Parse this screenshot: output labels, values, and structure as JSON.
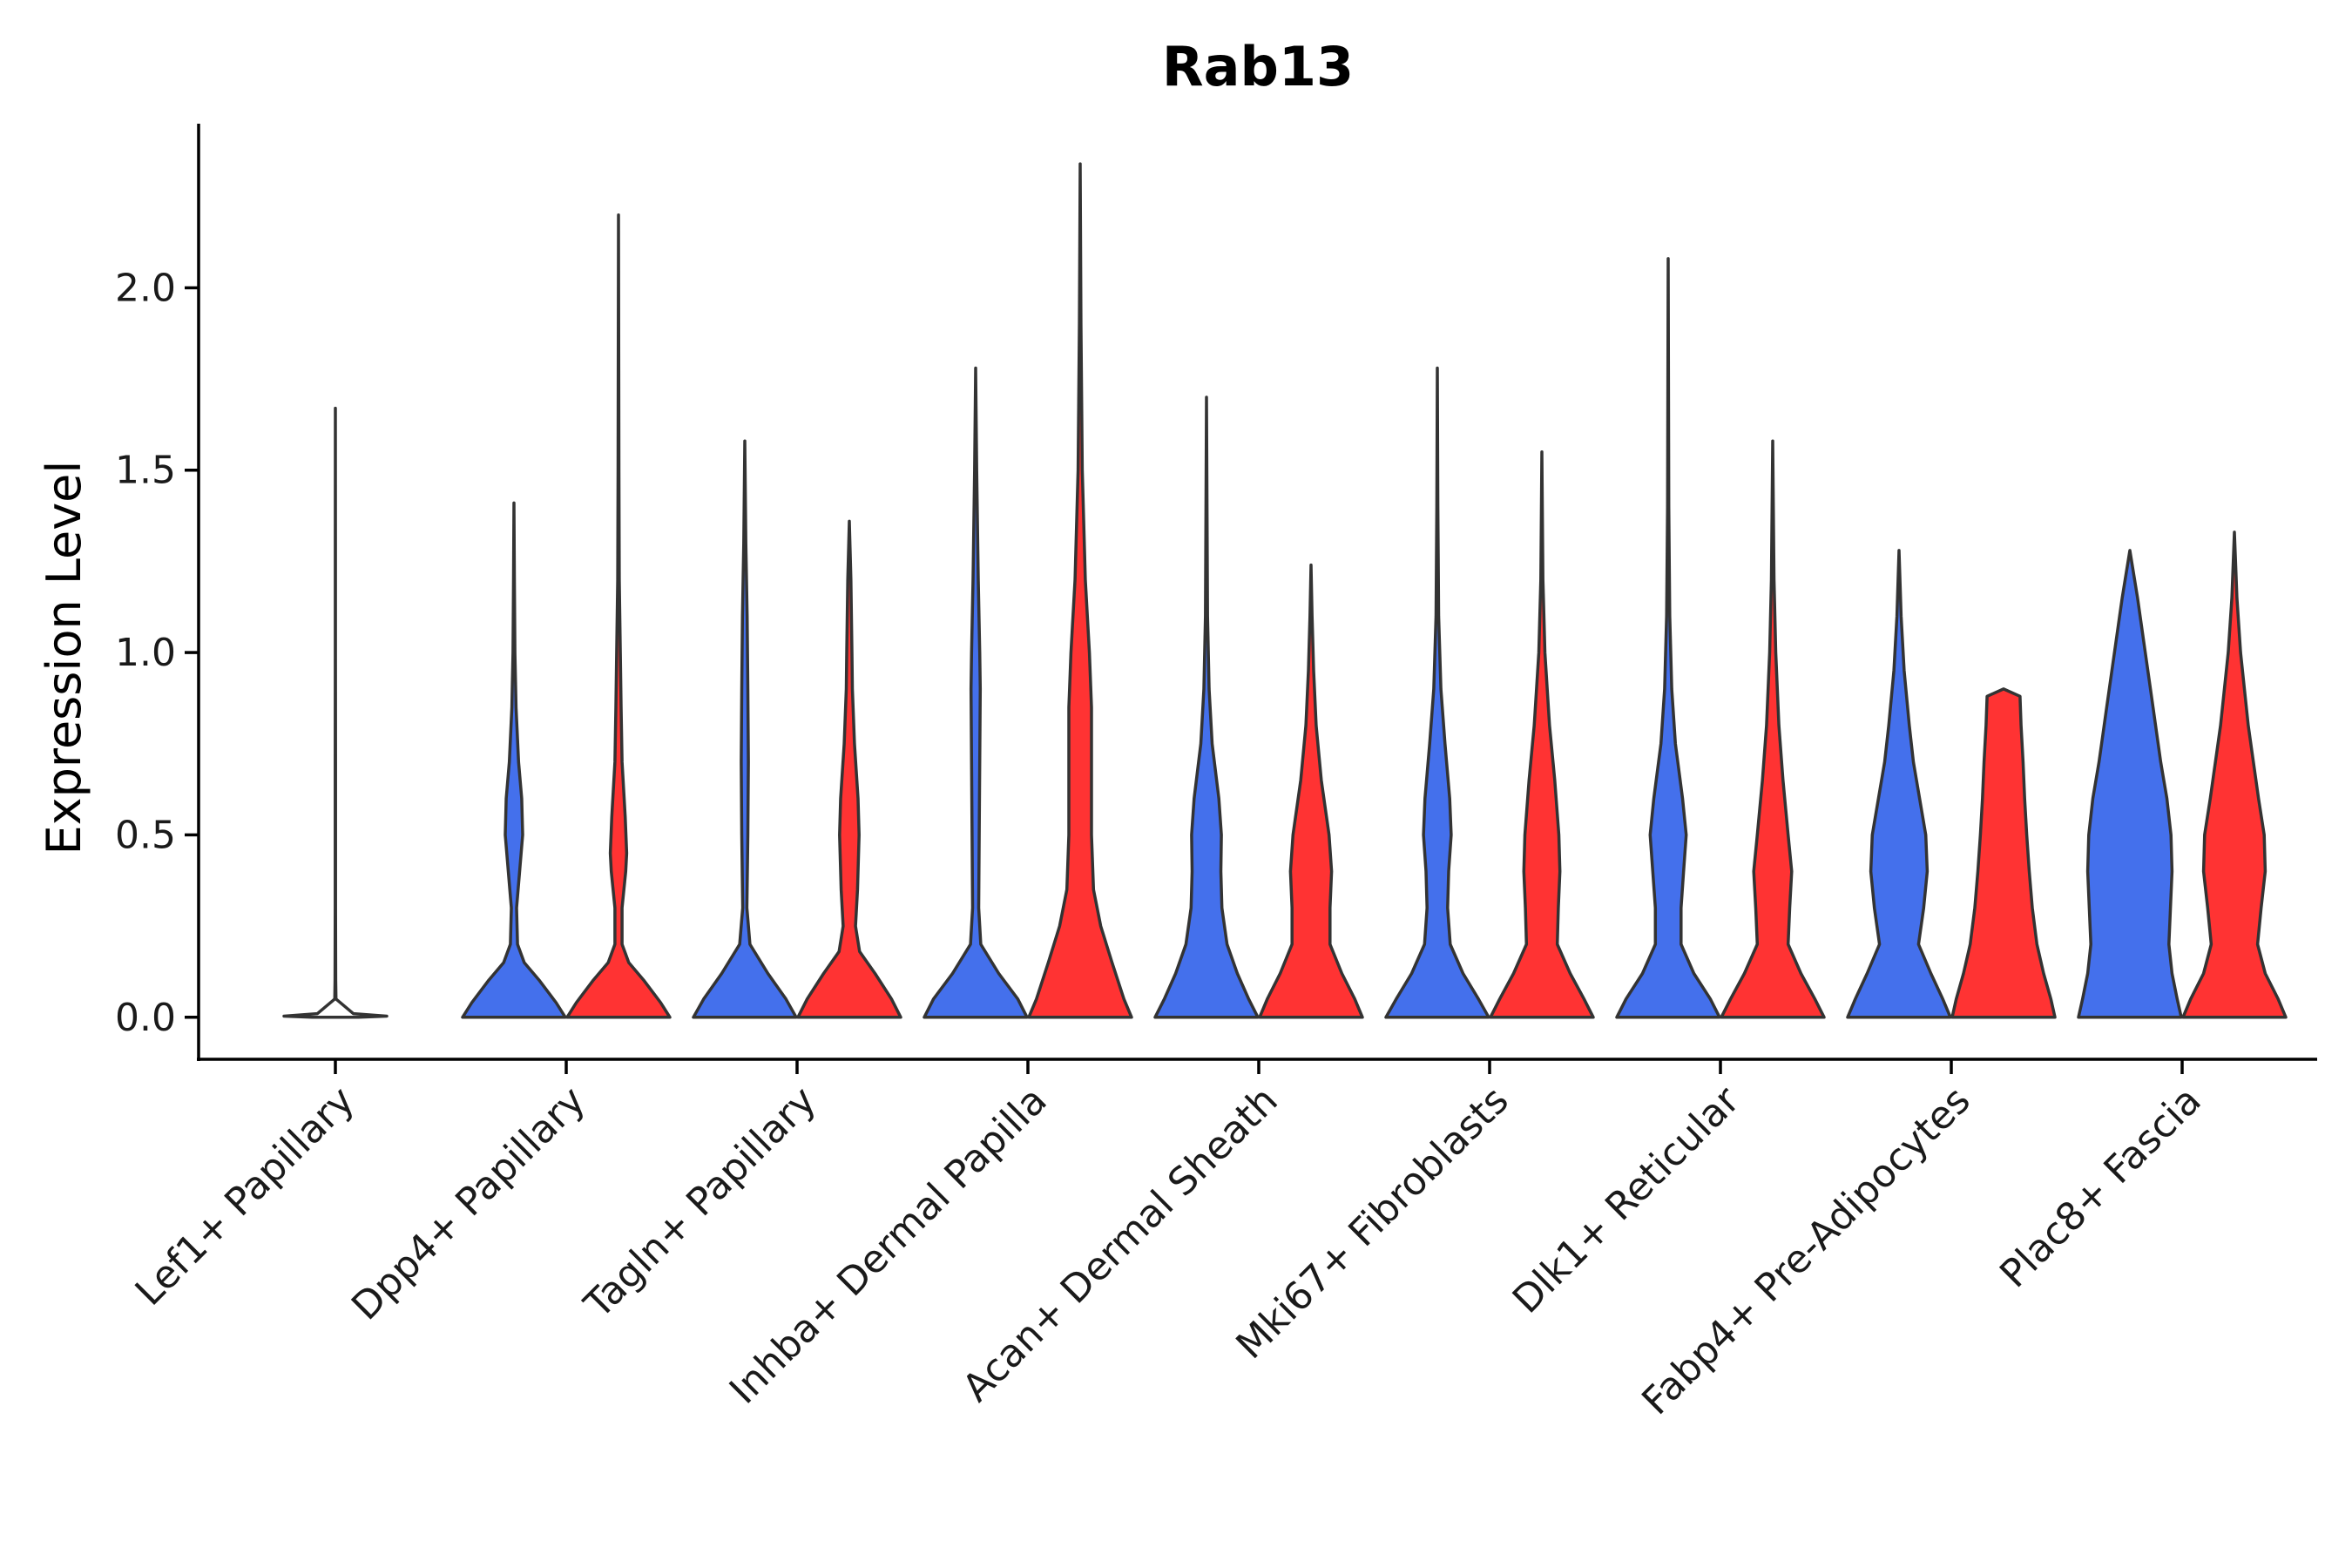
{
  "chart_data": {
    "type": "violin",
    "title": "Rab13",
    "ylabel": "Expression Level",
    "xlabel": "",
    "ylim": [
      -0.12,
      2.45
    ],
    "yticks": [
      0.0,
      0.5,
      1.0,
      1.5,
      2.0
    ],
    "ytick_labels": [
      "0.0",
      "0.5",
      "1.0",
      "1.5",
      "2.0"
    ],
    "grid": false,
    "legend": "none",
    "categories": [
      "Lef1+ Papillary",
      "Dpp4+ Papillary",
      "Tagln+ Papillary",
      "Inhba+ Dermal Papilla",
      "Acan+ Dermal Sheath",
      "Mki67+ Fibroblasts",
      "Dlk1+ Reticular",
      "Fabp4+ Pre-Adipocytes",
      "Plac8+ Fascia"
    ],
    "group_colors": [
      "#4470EC",
      "#FF3333"
    ],
    "groups": [
      [
        {
          "max": 1.67,
          "color": "#444444",
          "profile": [
            [
              0,
              0.45
            ],
            [
              0.003,
              1
            ],
            [
              0.01,
              0.35
            ],
            [
              0.05,
              0.012
            ],
            [
              0.1,
              0.006
            ],
            [
              0.3,
              0.004
            ],
            [
              0.5,
              0.003
            ],
            [
              0.7,
              0.003
            ],
            [
              1.0,
              0.002
            ],
            [
              1.3,
              0.002
            ],
            [
              1.67,
              0
            ]
          ]
        }
      ],
      [
        {
          "max": 1.41,
          "color": "#4470EC",
          "profile": [
            [
              0,
              1
            ],
            [
              0.04,
              0.82
            ],
            [
              0.1,
              0.5
            ],
            [
              0.15,
              0.2
            ],
            [
              0.2,
              0.07
            ],
            [
              0.3,
              0.05
            ],
            [
              0.4,
              0.11
            ],
            [
              0.5,
              0.17
            ],
            [
              0.6,
              0.15
            ],
            [
              0.7,
              0.09
            ],
            [
              0.85,
              0.04
            ],
            [
              1.0,
              0.018
            ],
            [
              1.2,
              0.008
            ],
            [
              1.41,
              0
            ]
          ]
        },
        {
          "max": 2.2,
          "color": "#FF3333",
          "profile": [
            [
              0,
              1
            ],
            [
              0.04,
              0.82
            ],
            [
              0.1,
              0.5
            ],
            [
              0.15,
              0.2
            ],
            [
              0.2,
              0.07
            ],
            [
              0.3,
              0.07
            ],
            [
              0.4,
              0.14
            ],
            [
              0.45,
              0.16
            ],
            [
              0.55,
              0.13
            ],
            [
              0.7,
              0.07
            ],
            [
              0.85,
              0.05
            ],
            [
              1.0,
              0.035
            ],
            [
              1.2,
              0.015
            ],
            [
              1.5,
              0.008
            ],
            [
              2.2,
              0
            ]
          ]
        }
      ],
      [
        {
          "max": 1.58,
          "color": "#4470EC",
          "profile": [
            [
              0,
              1
            ],
            [
              0.05,
              0.8
            ],
            [
              0.12,
              0.45
            ],
            [
              0.2,
              0.1
            ],
            [
              0.3,
              0.04
            ],
            [
              0.5,
              0.06
            ],
            [
              0.7,
              0.07
            ],
            [
              0.9,
              0.06
            ],
            [
              1.1,
              0.045
            ],
            [
              1.3,
              0.02
            ],
            [
              1.58,
              0
            ]
          ]
        },
        {
          "max": 1.36,
          "color": "#FF3333",
          "profile": [
            [
              0,
              1
            ],
            [
              0.05,
              0.82
            ],
            [
              0.12,
              0.5
            ],
            [
              0.18,
              0.2
            ],
            [
              0.25,
              0.12
            ],
            [
              0.35,
              0.16
            ],
            [
              0.5,
              0.19
            ],
            [
              0.6,
              0.17
            ],
            [
              0.75,
              0.1
            ],
            [
              0.9,
              0.06
            ],
            [
              1.0,
              0.05
            ],
            [
              1.2,
              0.03
            ],
            [
              1.36,
              0
            ]
          ]
        }
      ],
      [
        {
          "max": 1.78,
          "color": "#4470EC",
          "profile": [
            [
              0,
              1
            ],
            [
              0.05,
              0.82
            ],
            [
              0.12,
              0.45
            ],
            [
              0.2,
              0.1
            ],
            [
              0.3,
              0.06
            ],
            [
              0.5,
              0.07
            ],
            [
              0.7,
              0.08
            ],
            [
              0.9,
              0.09
            ],
            [
              1.0,
              0.08
            ],
            [
              1.2,
              0.05
            ],
            [
              1.5,
              0.02
            ],
            [
              1.78,
              0
            ]
          ]
        },
        {
          "max": 2.34,
          "color": "#FF3333",
          "profile": [
            [
              0,
              1
            ],
            [
              0.05,
              0.85
            ],
            [
              0.15,
              0.62
            ],
            [
              0.25,
              0.4
            ],
            [
              0.35,
              0.26
            ],
            [
              0.5,
              0.22
            ],
            [
              0.7,
              0.22
            ],
            [
              0.85,
              0.22
            ],
            [
              1.0,
              0.18
            ],
            [
              1.2,
              0.1
            ],
            [
              1.5,
              0.04
            ],
            [
              1.9,
              0.015
            ],
            [
              2.34,
              0
            ]
          ]
        }
      ],
      [
        {
          "max": 1.7,
          "color": "#4470EC",
          "profile": [
            [
              0,
              1
            ],
            [
              0.05,
              0.82
            ],
            [
              0.12,
              0.6
            ],
            [
              0.2,
              0.4
            ],
            [
              0.3,
              0.3
            ],
            [
              0.4,
              0.28
            ],
            [
              0.5,
              0.29
            ],
            [
              0.6,
              0.24
            ],
            [
              0.75,
              0.11
            ],
            [
              0.9,
              0.05
            ],
            [
              1.1,
              0.02
            ],
            [
              1.4,
              0.01
            ],
            [
              1.7,
              0
            ]
          ]
        },
        {
          "max": 1.24,
          "color": "#FF3333",
          "profile": [
            [
              0,
              1
            ],
            [
              0.05,
              0.85
            ],
            [
              0.12,
              0.6
            ],
            [
              0.2,
              0.37
            ],
            [
              0.3,
              0.37
            ],
            [
              0.4,
              0.4
            ],
            [
              0.5,
              0.35
            ],
            [
              0.65,
              0.2
            ],
            [
              0.8,
              0.1
            ],
            [
              0.95,
              0.05
            ],
            [
              1.1,
              0.02
            ],
            [
              1.24,
              0
            ]
          ]
        }
      ],
      [
        {
          "max": 1.78,
          "color": "#4470EC",
          "profile": [
            [
              0,
              1
            ],
            [
              0.05,
              0.8
            ],
            [
              0.12,
              0.5
            ],
            [
              0.2,
              0.25
            ],
            [
              0.3,
              0.2
            ],
            [
              0.4,
              0.22
            ],
            [
              0.5,
              0.27
            ],
            [
              0.6,
              0.24
            ],
            [
              0.75,
              0.15
            ],
            [
              0.9,
              0.07
            ],
            [
              1.1,
              0.025
            ],
            [
              1.4,
              0.01
            ],
            [
              1.78,
              0
            ]
          ]
        },
        {
          "max": 1.55,
          "color": "#FF3333",
          "profile": [
            [
              0,
              1
            ],
            [
              0.05,
              0.82
            ],
            [
              0.12,
              0.55
            ],
            [
              0.2,
              0.3
            ],
            [
              0.3,
              0.32
            ],
            [
              0.4,
              0.35
            ],
            [
              0.5,
              0.33
            ],
            [
              0.65,
              0.25
            ],
            [
              0.8,
              0.15
            ],
            [
              1.0,
              0.06
            ],
            [
              1.2,
              0.02
            ],
            [
              1.55,
              0
            ]
          ]
        }
      ],
      [
        {
          "max": 2.08,
          "color": "#4470EC",
          "profile": [
            [
              0,
              1
            ],
            [
              0.05,
              0.82
            ],
            [
              0.12,
              0.5
            ],
            [
              0.2,
              0.25
            ],
            [
              0.3,
              0.25
            ],
            [
              0.4,
              0.3
            ],
            [
              0.5,
              0.35
            ],
            [
              0.6,
              0.28
            ],
            [
              0.75,
              0.14
            ],
            [
              0.9,
              0.07
            ],
            [
              1.1,
              0.03
            ],
            [
              1.4,
              0.012
            ],
            [
              2.08,
              0
            ]
          ]
        },
        {
          "max": 1.58,
          "color": "#FF3333",
          "profile": [
            [
              0,
              1
            ],
            [
              0.05,
              0.82
            ],
            [
              0.12,
              0.55
            ],
            [
              0.2,
              0.3
            ],
            [
              0.3,
              0.33
            ],
            [
              0.4,
              0.37
            ],
            [
              0.5,
              0.3
            ],
            [
              0.65,
              0.2
            ],
            [
              0.8,
              0.12
            ],
            [
              1.0,
              0.06
            ],
            [
              1.2,
              0.025
            ],
            [
              1.58,
              0
            ]
          ]
        }
      ],
      [
        {
          "max": 1.28,
          "color": "#4470EC",
          "profile": [
            [
              0,
              1
            ],
            [
              0.05,
              0.85
            ],
            [
              0.12,
              0.62
            ],
            [
              0.2,
              0.38
            ],
            [
              0.3,
              0.48
            ],
            [
              0.4,
              0.55
            ],
            [
              0.5,
              0.52
            ],
            [
              0.6,
              0.4
            ],
            [
              0.7,
              0.28
            ],
            [
              0.8,
              0.2
            ],
            [
              0.95,
              0.1
            ],
            [
              1.1,
              0.04
            ],
            [
              1.28,
              0
            ]
          ]
        },
        {
          "max": 0.9,
          "color": "#FF3333",
          "profile": [
            [
              0,
              1
            ],
            [
              0.05,
              0.92
            ],
            [
              0.12,
              0.78
            ],
            [
              0.2,
              0.65
            ],
            [
              0.3,
              0.56
            ],
            [
              0.4,
              0.5
            ],
            [
              0.5,
              0.45
            ],
            [
              0.6,
              0.41
            ],
            [
              0.7,
              0.38
            ],
            [
              0.8,
              0.34
            ],
            [
              0.88,
              0.32
            ],
            [
              0.9,
              0
            ]
          ]
        }
      ],
      [
        {
          "max": 1.28,
          "color": "#4470EC",
          "profile": [
            [
              0,
              1
            ],
            [
              0.05,
              0.92
            ],
            [
              0.12,
              0.82
            ],
            [
              0.2,
              0.76
            ],
            [
              0.3,
              0.79
            ],
            [
              0.4,
              0.82
            ],
            [
              0.5,
              0.8
            ],
            [
              0.6,
              0.72
            ],
            [
              0.7,
              0.6
            ],
            [
              0.85,
              0.45
            ],
            [
              1.0,
              0.3
            ],
            [
              1.15,
              0.15
            ],
            [
              1.28,
              0
            ]
          ]
        },
        {
          "max": 1.33,
          "color": "#FF3333",
          "profile": [
            [
              0,
              1
            ],
            [
              0.05,
              0.85
            ],
            [
              0.12,
              0.6
            ],
            [
              0.2,
              0.45
            ],
            [
              0.3,
              0.52
            ],
            [
              0.4,
              0.6
            ],
            [
              0.5,
              0.58
            ],
            [
              0.6,
              0.47
            ],
            [
              0.7,
              0.37
            ],
            [
              0.8,
              0.27
            ],
            [
              1.0,
              0.12
            ],
            [
              1.15,
              0.05
            ],
            [
              1.33,
              0
            ]
          ]
        }
      ]
    ]
  }
}
